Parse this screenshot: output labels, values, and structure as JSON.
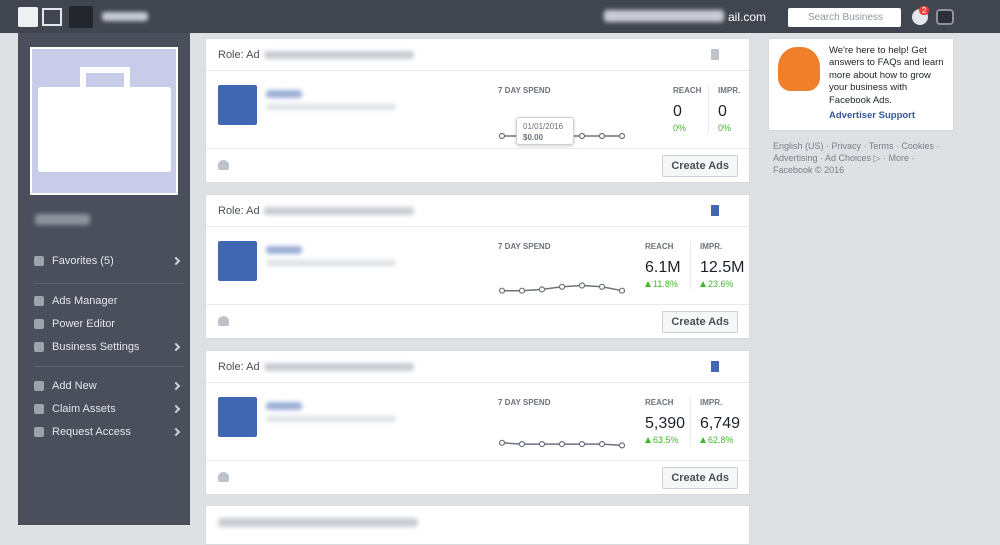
{
  "top_bar": {
    "email_suffix": "ail.com",
    "search_placeholder": "Search Business",
    "notifications": "2"
  },
  "sidebar": {
    "favorites": "Favorites (5)",
    "tools": [
      "Ads Manager",
      "Power Editor",
      "Business Settings"
    ],
    "actions": [
      "Add New",
      "Claim Assets",
      "Request Access"
    ]
  },
  "accounts": [
    {
      "role": "Role: Ad",
      "spend_label": "7 DAY SPEND",
      "reach_label": "REACH",
      "impr_label": "IMPR.",
      "reach": "0",
      "impr": "0",
      "reach_change": "0%",
      "impr_change": "0%",
      "button": "Create Ads",
      "tooltip_date": "01/01/2016",
      "tooltip_amount": "$0.00"
    },
    {
      "role": "Role: Ad",
      "spend_label": "7 DAY SPEND",
      "reach_label": "REACH",
      "impr_label": "IMPR.",
      "reach": "6.1M",
      "impr": "12.5M",
      "reach_change": "11.8%",
      "impr_change": "23.6%",
      "button": "Create Ads"
    },
    {
      "role": "Role: Ad",
      "spend_label": "7 DAY SPEND",
      "reach_label": "REACH",
      "impr_label": "IMPR.",
      "reach": "5,390",
      "impr": "6,749",
      "reach_change": "63.5%",
      "impr_change": "62.8%",
      "button": "Create Ads"
    }
  ],
  "help": {
    "text": "We're here to help! Get answers to FAQs and learn more about how to grow your business with Facebook Ads.",
    "link": "Advertiser Support"
  },
  "footer": {
    "text": "English (US) · Privacy · Terms · Cookies · Advertising · Ad Choices ▷ · More · Facebook © 2016"
  }
}
